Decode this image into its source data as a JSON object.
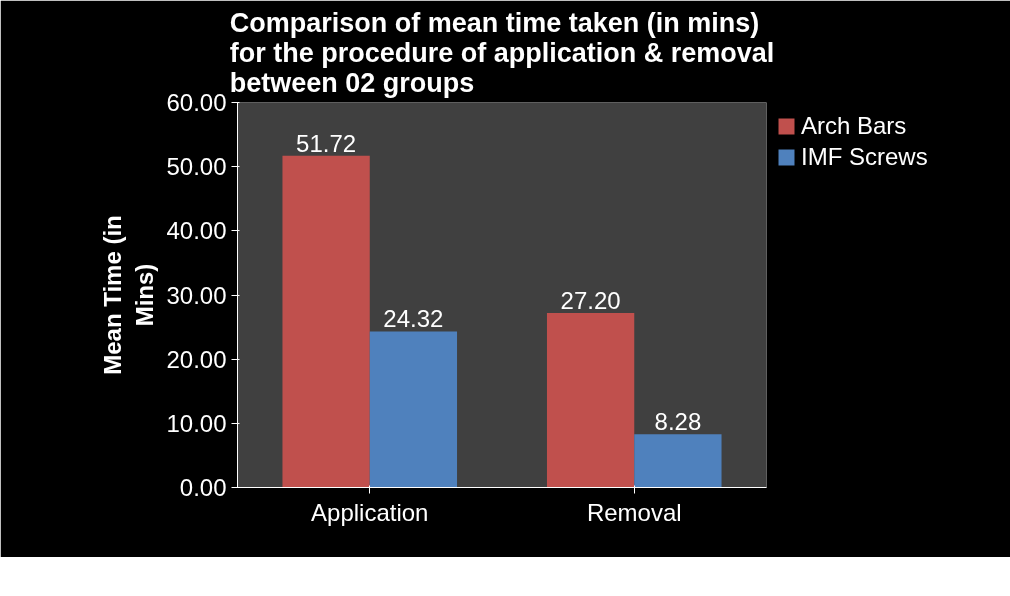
{
  "chart_data": {
    "type": "bar",
    "title": "Comparison of mean time taken (in mins) for the procedure of application & removal between 02 groups",
    "ylabel": "Mean Time (in Mins)",
    "categories": [
      "Application",
      "Removal"
    ],
    "series": [
      {
        "name": "Arch Bars",
        "color": "#c0504d",
        "values": [
          51.72,
          27.2
        ],
        "value_labels": [
          "51.72",
          "27.20"
        ]
      },
      {
        "name": "IMF Screws",
        "color": "#4f81bd",
        "values": [
          24.32,
          8.28
        ],
        "value_labels": [
          "24.32",
          "8.28"
        ]
      }
    ],
    "ylim": [
      0,
      60
    ],
    "yticks": [
      {
        "value": 0,
        "label": "0.00"
      },
      {
        "value": 10,
        "label": "10.00"
      },
      {
        "value": 20,
        "label": "20.00"
      },
      {
        "value": 30,
        "label": "30.00"
      },
      {
        "value": 40,
        "label": "40.00"
      },
      {
        "value": 50,
        "label": "50.00"
      },
      {
        "value": 60,
        "label": "60.00"
      }
    ],
    "grid": false,
    "legend": "top right"
  }
}
